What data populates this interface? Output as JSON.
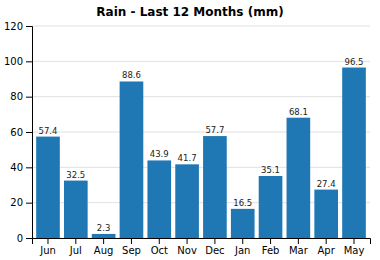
{
  "chart_data": {
    "type": "bar",
    "title": "Rain - Last 12 Months (mm)",
    "categories": [
      "Jun",
      "Jul",
      "Aug",
      "Sep",
      "Oct",
      "Nov",
      "Dec",
      "Jan",
      "Feb",
      "Mar",
      "Apr",
      "May"
    ],
    "values": [
      57.4,
      32.5,
      2.3,
      88.6,
      43.9,
      41.7,
      57.7,
      16.5,
      35.1,
      68.1,
      27.4,
      96.5
    ],
    "ylim": [
      0,
      120
    ],
    "yticks": [
      0,
      20,
      40,
      60,
      80,
      100,
      120
    ],
    "grid": true,
    "data_labels": true
  }
}
